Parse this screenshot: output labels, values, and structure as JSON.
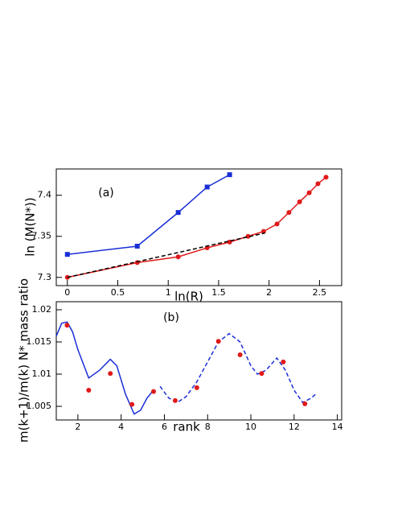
{
  "chart_data": [
    {
      "type": "line",
      "xlabel": "ln(R)",
      "ylabel": "ln (M(N*))",
      "annotations": [
        "(a)"
      ],
      "xlim": [
        -0.11,
        2.72
      ],
      "ylim": [
        7.29,
        7.432
      ],
      "xticks": [
        0,
        0.5,
        1,
        1.5,
        2,
        2.5
      ],
      "yticks": [
        7.3,
        7.35,
        7.4
      ],
      "series": [
        {
          "color": "#1a2fd6",
          "line": "solid",
          "marker": "square",
          "x": [
            0,
            0.693,
            1.099,
            1.386,
            1.609
          ],
          "values": [
            7.328,
            7.338,
            7.379,
            7.41,
            7.425
          ]
        },
        {
          "color": "#e01a1a",
          "line": "solid",
          "marker": "circle",
          "x": [
            0,
            0.693,
            1.099,
            1.386,
            1.609,
            1.792,
            1.946,
            2.079,
            2.197,
            2.303,
            2.398,
            2.485,
            2.565
          ],
          "values": [
            7.3,
            7.318,
            7.325,
            7.336,
            7.343,
            7.35,
            7.356,
            7.365,
            7.379,
            7.392,
            7.403,
            7.414,
            7.422
          ]
        },
        {
          "color": "#000000",
          "line": "dashed",
          "marker": "none",
          "x": [
            0,
            1.96
          ],
          "values": [
            7.3,
            7.354
          ]
        }
      ]
    },
    {
      "type": "line",
      "xlabel": "rank",
      "ylabel": "m(k+1)/m(k) N* mass ratio",
      "annotations": [
        "(b)"
      ],
      "xlim": [
        1,
        14.2
      ],
      "ylim": [
        1.00288,
        1.02125
      ],
      "xticks": [
        2,
        4,
        6,
        8,
        10,
        12,
        14
      ],
      "yticks": [
        1.005,
        1.01,
        1.015,
        1.02
      ],
      "series": [
        {
          "color": "#1a2fd6",
          "line": "solid",
          "marker": "none",
          "x": [
            1.0,
            1.25,
            1.5,
            1.75,
            2.0,
            2.5,
            3.0,
            3.5,
            3.8,
            4.2,
            4.6,
            4.9,
            5.2,
            5.5
          ],
          "values": [
            1.0159,
            1.0179,
            1.0181,
            1.0166,
            1.0138,
            1.0094,
            1.0106,
            1.0123,
            1.0113,
            1.0069,
            1.0038,
            1.0044,
            1.0063,
            1.0075
          ]
        },
        {
          "color": "#1a2fd6",
          "line": "dashed",
          "marker": "none",
          "x": [
            5.8,
            6.2,
            6.6,
            7.0,
            7.5,
            8.0,
            8.5,
            9.0,
            9.5,
            10.0,
            10.3,
            10.7,
            11.2,
            11.6,
            12.0,
            12.4,
            12.8,
            13.0
          ],
          "values": [
            1.0081,
            1.0063,
            1.0056,
            1.0065,
            1.0088,
            1.0119,
            1.015,
            1.0163,
            1.015,
            1.0113,
            1.01,
            1.0106,
            1.0125,
            1.0106,
            1.0075,
            1.0056,
            1.0063,
            1.0069
          ]
        },
        {
          "color": "#e01a1a",
          "line": "none",
          "marker": "circle",
          "x": [
            1.5,
            2.5,
            3.5,
            4.5,
            5.5,
            6.5,
            7.5,
            8.5,
            9.5,
            10.5,
            11.5,
            12.5
          ],
          "values": [
            1.0176,
            1.0075,
            1.0101,
            1.0053,
            1.0073,
            1.0059,
            1.0079,
            1.0151,
            1.013,
            1.0101,
            1.0119,
            1.0054
          ]
        }
      ]
    }
  ]
}
